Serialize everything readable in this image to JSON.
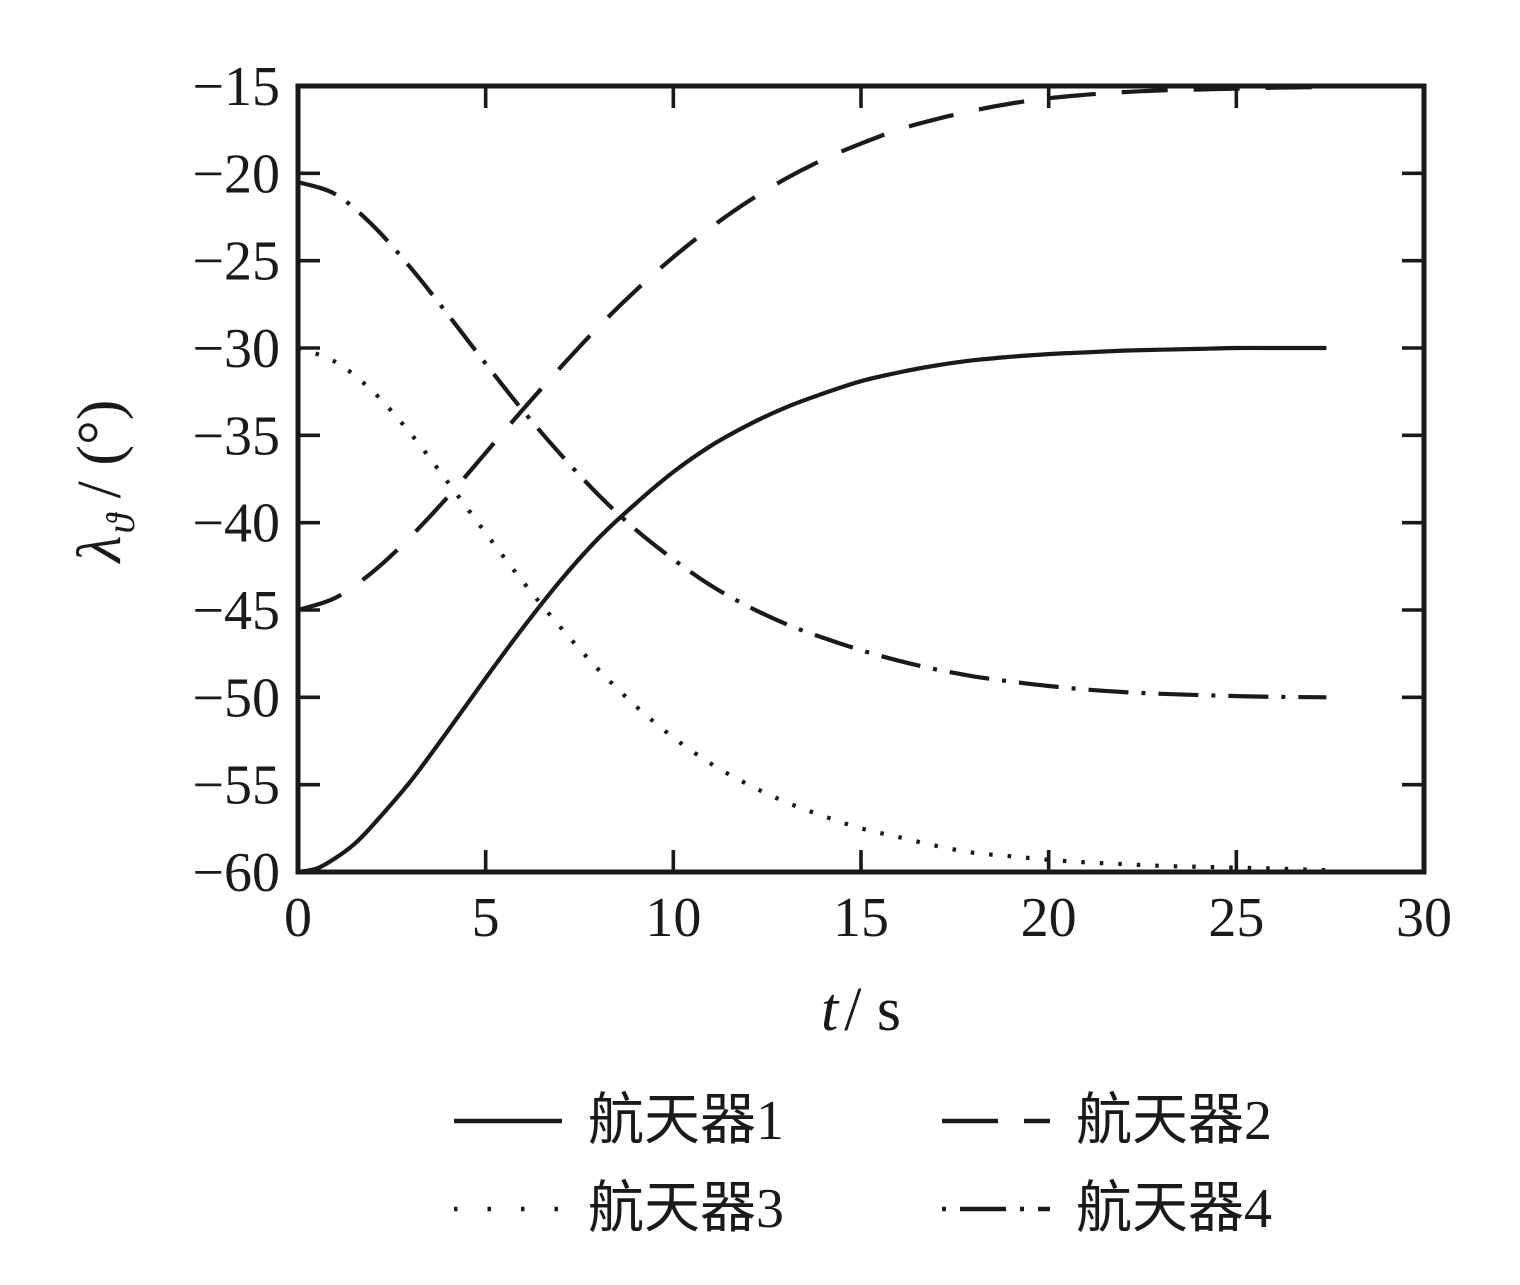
{
  "chart_data": {
    "type": "line",
    "title": "",
    "xlabel": {
      "symbol": "t",
      "unit": "/ s"
    },
    "ylabel": {
      "symbol": "λ",
      "subscript": "ϑ",
      "unit": " / (°)"
    },
    "xlim": [
      0,
      30
    ],
    "ylim": [
      -60,
      -15
    ],
    "x_ticks": [
      0,
      5,
      10,
      15,
      20,
      25,
      30
    ],
    "y_ticks": [
      -60,
      -55,
      -50,
      -45,
      -40,
      -35,
      -30,
      -25,
      -20,
      -15
    ],
    "grid": false,
    "legend_position": "below-plot, 2x2 grid",
    "colors": {
      "line": "#1a1a1a",
      "background": "#ffffff"
    },
    "series": [
      {
        "name": "航天器1",
        "style": "solid",
        "points": [
          [
            0,
            -60
          ],
          [
            0.5,
            -59.8
          ],
          [
            1,
            -59.2
          ],
          [
            1.5,
            -58.4
          ],
          [
            2,
            -57.3
          ],
          [
            3,
            -54.8
          ],
          [
            4,
            -51.9
          ],
          [
            5,
            -48.9
          ],
          [
            6,
            -46.0
          ],
          [
            7,
            -43.3
          ],
          [
            8,
            -40.9
          ],
          [
            9,
            -38.9
          ],
          [
            10,
            -37.1
          ],
          [
            11,
            -35.6
          ],
          [
            12,
            -34.4
          ],
          [
            13,
            -33.4
          ],
          [
            14,
            -32.6
          ],
          [
            15,
            -31.9
          ],
          [
            16,
            -31.4
          ],
          [
            17,
            -31.0
          ],
          [
            18,
            -30.7
          ],
          [
            19,
            -30.5
          ],
          [
            20,
            -30.35
          ],
          [
            21,
            -30.25
          ],
          [
            22,
            -30.15
          ],
          [
            23,
            -30.1
          ],
          [
            24,
            -30.05
          ],
          [
            25,
            -30
          ],
          [
            26,
            -30
          ],
          [
            27.4,
            -30
          ]
        ]
      },
      {
        "name": "航天器2",
        "style": "dashed",
        "points": [
          [
            0,
            -45
          ],
          [
            1,
            -44.3
          ],
          [
            2,
            -42.8
          ],
          [
            3,
            -40.8
          ],
          [
            4,
            -38.5
          ],
          [
            5,
            -36.0
          ],
          [
            6,
            -33.5
          ],
          [
            7,
            -31.1
          ],
          [
            8,
            -28.8
          ],
          [
            9,
            -26.7
          ],
          [
            10,
            -24.8
          ],
          [
            11,
            -23.1
          ],
          [
            12,
            -21.6
          ],
          [
            13,
            -20.3
          ],
          [
            14,
            -19.2
          ],
          [
            15,
            -18.3
          ],
          [
            16,
            -17.5
          ],
          [
            17,
            -16.9
          ],
          [
            18,
            -16.4
          ],
          [
            19,
            -16.0
          ],
          [
            20,
            -15.7
          ],
          [
            21,
            -15.5
          ],
          [
            22,
            -15.35
          ],
          [
            23,
            -15.25
          ],
          [
            24,
            -15.2
          ],
          [
            25,
            -15.15
          ],
          [
            26,
            -15.1
          ],
          [
            27.4,
            -15.05
          ]
        ]
      },
      {
        "name": "航天器3",
        "style": "dotted",
        "points": [
          [
            0,
            -30
          ],
          [
            1,
            -30.8
          ],
          [
            2,
            -32.5
          ],
          [
            3,
            -34.9
          ],
          [
            4,
            -37.7
          ],
          [
            5,
            -40.6
          ],
          [
            6,
            -43.4
          ],
          [
            7,
            -46.0
          ],
          [
            8,
            -48.4
          ],
          [
            9,
            -50.5
          ],
          [
            10,
            -52.3
          ],
          [
            11,
            -53.8
          ],
          [
            12,
            -55.0
          ],
          [
            13,
            -56.0
          ],
          [
            14,
            -56.8
          ],
          [
            15,
            -57.5
          ],
          [
            16,
            -58.0
          ],
          [
            17,
            -58.5
          ],
          [
            18,
            -58.9
          ],
          [
            19,
            -59.1
          ],
          [
            20,
            -59.3
          ],
          [
            21,
            -59.45
          ],
          [
            22,
            -59.55
          ],
          [
            23,
            -59.65
          ],
          [
            24,
            -59.7
          ],
          [
            25,
            -59.75
          ],
          [
            26,
            -59.8
          ],
          [
            27.4,
            -59.9
          ]
        ]
      },
      {
        "name": "航天器4",
        "style": "dashdot",
        "points": [
          [
            0,
            -20.5
          ],
          [
            1,
            -21.2
          ],
          [
            2,
            -23.0
          ],
          [
            3,
            -25.4
          ],
          [
            4,
            -28.1
          ],
          [
            5,
            -30.9
          ],
          [
            6,
            -33.6
          ],
          [
            7,
            -36.1
          ],
          [
            8,
            -38.4
          ],
          [
            9,
            -40.4
          ],
          [
            10,
            -42.1
          ],
          [
            11,
            -43.6
          ],
          [
            12,
            -44.8
          ],
          [
            13,
            -45.8
          ],
          [
            14,
            -46.6
          ],
          [
            15,
            -47.3
          ],
          [
            16,
            -47.9
          ],
          [
            17,
            -48.4
          ],
          [
            18,
            -48.8
          ],
          [
            19,
            -49.1
          ],
          [
            20,
            -49.35
          ],
          [
            21,
            -49.55
          ],
          [
            22,
            -49.7
          ],
          [
            23,
            -49.8
          ],
          [
            24,
            -49.87
          ],
          [
            25,
            -49.93
          ],
          [
            26,
            -49.97
          ],
          [
            27.4,
            -50
          ]
        ]
      }
    ]
  }
}
